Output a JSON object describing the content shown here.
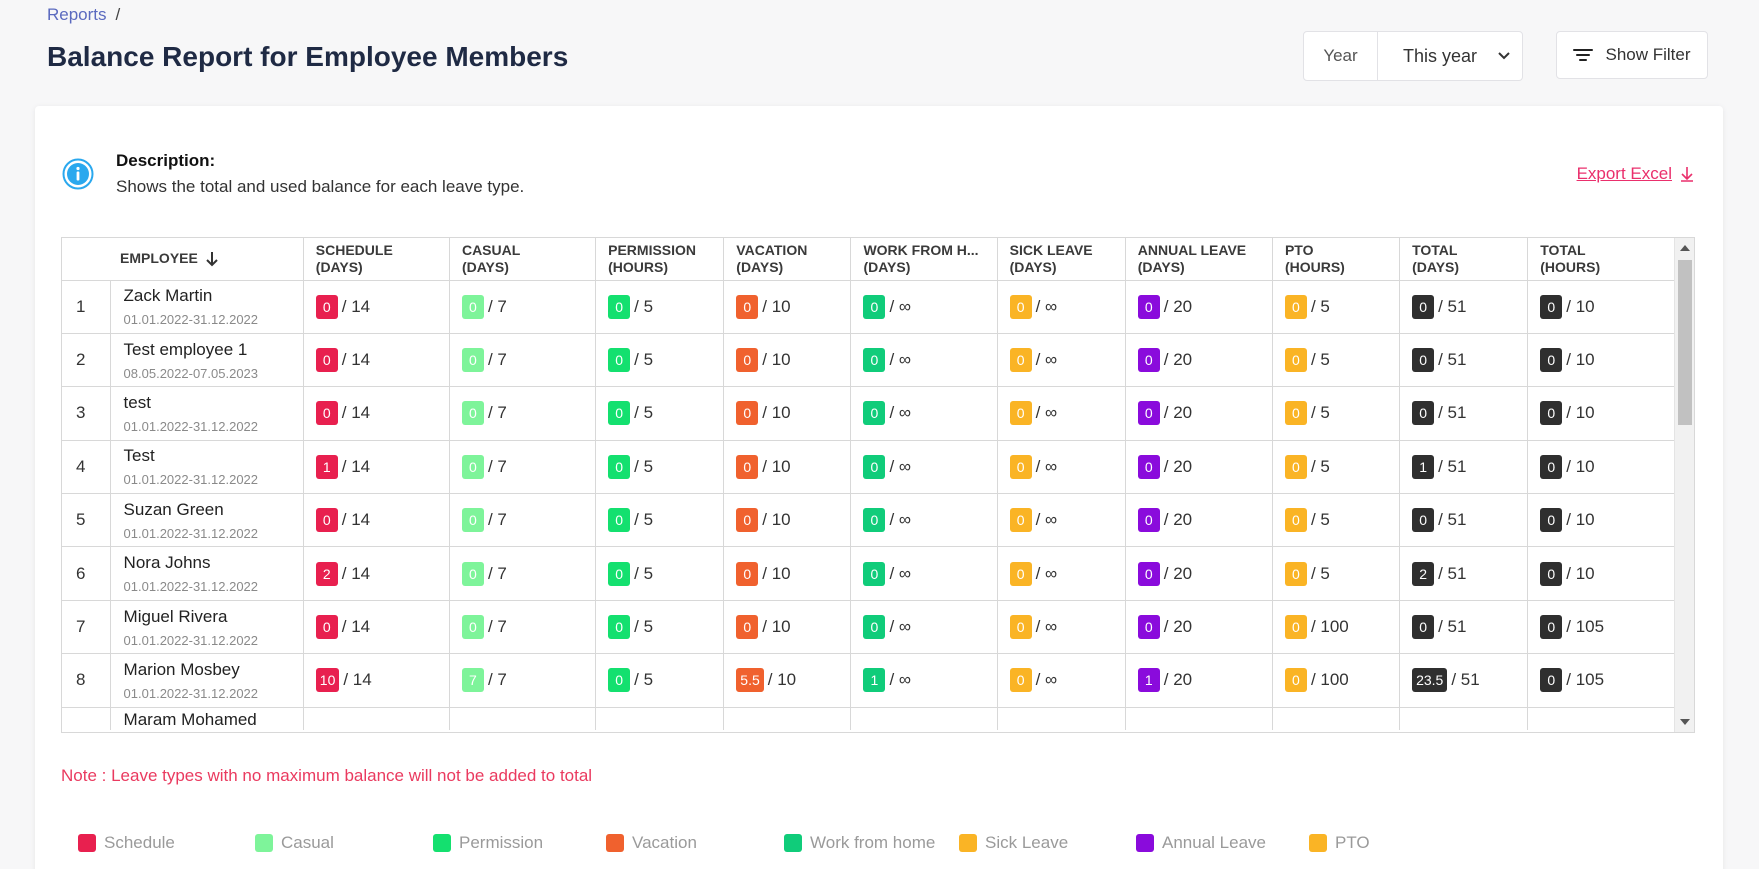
{
  "breadcrumb": {
    "link": "Reports",
    "separator": "/"
  },
  "page_title": "Balance Report for Employee Members",
  "year_filter": {
    "label": "Year",
    "selected": "This year"
  },
  "show_filter_label": "Show Filter",
  "description": {
    "title": "Description:",
    "text": "Shows the total and used balance for each leave type."
  },
  "export_label": "Export Excel",
  "colors": {
    "schedule": "#e8204f",
    "casual": "#7ef49a",
    "permission": "#14e06f",
    "vacation": "#f0612e",
    "wfh": "#10cc7a",
    "sick": "#fab425",
    "annual": "#8a0bdc",
    "pto": "#fab425",
    "total": "#2f2f2f"
  },
  "table": {
    "headers": [
      {
        "key": "employee",
        "label": "EMPLOYEE"
      },
      {
        "key": "schedule",
        "line1": "SCHEDULE",
        "line2": "(DAYS)"
      },
      {
        "key": "casual",
        "line1": "CASUAL",
        "line2": "(DAYS)"
      },
      {
        "key": "permission",
        "line1": "PERMISSION",
        "line2": "(HOURS)"
      },
      {
        "key": "vacation",
        "line1": "VACATION",
        "line2": "(DAYS)"
      },
      {
        "key": "wfh",
        "line1": "WORK FROM H...",
        "line2": "(DAYS)"
      },
      {
        "key": "sick",
        "line1": "SICK LEAVE",
        "line2": "(DAYS)"
      },
      {
        "key": "annual",
        "line1": "ANNUAL LEAVE",
        "line2": "(DAYS)"
      },
      {
        "key": "pto",
        "line1": "PTO",
        "line2": "(HOURS)"
      },
      {
        "key": "total_days",
        "line1": "TOTAL",
        "line2": "(DAYS)"
      },
      {
        "key": "total_hours",
        "line1": "TOTAL",
        "line2": "(HOURS)"
      }
    ],
    "rows": [
      {
        "idx": "1",
        "name": "Zack Martin",
        "dates": "01.01.2022-31.12.2022",
        "cells": [
          [
            "0",
            "/ 14"
          ],
          [
            "0",
            "/ 7"
          ],
          [
            "0",
            "/ 5"
          ],
          [
            "0",
            "/ 10"
          ],
          [
            "0",
            "/ ∞"
          ],
          [
            "0",
            "/ ∞"
          ],
          [
            "0",
            "/ 20"
          ],
          [
            "0",
            "/ 5"
          ],
          [
            "0",
            "/ 51"
          ],
          [
            "0",
            "/ 10"
          ]
        ]
      },
      {
        "idx": "2",
        "name": "Test employee 1",
        "dates": "08.05.2022-07.05.2023",
        "cells": [
          [
            "0",
            "/ 14"
          ],
          [
            "0",
            "/ 7"
          ],
          [
            "0",
            "/ 5"
          ],
          [
            "0",
            "/ 10"
          ],
          [
            "0",
            "/ ∞"
          ],
          [
            "0",
            "/ ∞"
          ],
          [
            "0",
            "/ 20"
          ],
          [
            "0",
            "/ 5"
          ],
          [
            "0",
            "/ 51"
          ],
          [
            "0",
            "/ 10"
          ]
        ]
      },
      {
        "idx": "3",
        "name": "test",
        "dates": "01.01.2022-31.12.2022",
        "cells": [
          [
            "0",
            "/ 14"
          ],
          [
            "0",
            "/ 7"
          ],
          [
            "0",
            "/ 5"
          ],
          [
            "0",
            "/ 10"
          ],
          [
            "0",
            "/ ∞"
          ],
          [
            "0",
            "/ ∞"
          ],
          [
            "0",
            "/ 20"
          ],
          [
            "0",
            "/ 5"
          ],
          [
            "0",
            "/ 51"
          ],
          [
            "0",
            "/ 10"
          ]
        ]
      },
      {
        "idx": "4",
        "name": "Test",
        "dates": "01.01.2022-31.12.2022",
        "cells": [
          [
            "1",
            "/ 14"
          ],
          [
            "0",
            "/ 7"
          ],
          [
            "0",
            "/ 5"
          ],
          [
            "0",
            "/ 10"
          ],
          [
            "0",
            "/ ∞"
          ],
          [
            "0",
            "/ ∞"
          ],
          [
            "0",
            "/ 20"
          ],
          [
            "0",
            "/ 5"
          ],
          [
            "1",
            "/ 51"
          ],
          [
            "0",
            "/ 10"
          ]
        ]
      },
      {
        "idx": "5",
        "name": "Suzan Green",
        "dates": "01.01.2022-31.12.2022",
        "cells": [
          [
            "0",
            "/ 14"
          ],
          [
            "0",
            "/ 7"
          ],
          [
            "0",
            "/ 5"
          ],
          [
            "0",
            "/ 10"
          ],
          [
            "0",
            "/ ∞"
          ],
          [
            "0",
            "/ ∞"
          ],
          [
            "0",
            "/ 20"
          ],
          [
            "0",
            "/ 5"
          ],
          [
            "0",
            "/ 51"
          ],
          [
            "0",
            "/ 10"
          ]
        ]
      },
      {
        "idx": "6",
        "name": "Nora Johns",
        "dates": "01.01.2022-31.12.2022",
        "cells": [
          [
            "2",
            "/ 14"
          ],
          [
            "0",
            "/ 7"
          ],
          [
            "0",
            "/ 5"
          ],
          [
            "0",
            "/ 10"
          ],
          [
            "0",
            "/ ∞"
          ],
          [
            "0",
            "/ ∞"
          ],
          [
            "0",
            "/ 20"
          ],
          [
            "0",
            "/ 5"
          ],
          [
            "2",
            "/ 51"
          ],
          [
            "0",
            "/ 10"
          ]
        ]
      },
      {
        "idx": "7",
        "name": "Miguel Rivera",
        "dates": "01.01.2022-31.12.2022",
        "cells": [
          [
            "0",
            "/ 14"
          ],
          [
            "0",
            "/ 7"
          ],
          [
            "0",
            "/ 5"
          ],
          [
            "0",
            "/ 10"
          ],
          [
            "0",
            "/ ∞"
          ],
          [
            "0",
            "/ ∞"
          ],
          [
            "0",
            "/ 20"
          ],
          [
            "0",
            "/ 100"
          ],
          [
            "0",
            "/ 51"
          ],
          [
            "0",
            "/ 105"
          ]
        ]
      },
      {
        "idx": "8",
        "name": "Marion Mosbey",
        "dates": "01.01.2022-31.12.2022",
        "cells": [
          [
            "10",
            "/ 14"
          ],
          [
            "7",
            "/ 7"
          ],
          [
            "0",
            "/ 5"
          ],
          [
            "5.5",
            "/ 10"
          ],
          [
            "1",
            "/ ∞"
          ],
          [
            "0",
            "/ ∞"
          ],
          [
            "1",
            "/ 20"
          ],
          [
            "0",
            "/ 100"
          ],
          [
            "23.5",
            "/ 51"
          ],
          [
            "0",
            "/ 105"
          ]
        ]
      },
      {
        "idx": "",
        "name": "Maram Mohamed",
        "dates": "",
        "cells": []
      }
    ]
  },
  "note": "Note : Leave types with no maximum balance will not be added to total",
  "legend": [
    {
      "label": "Schedule",
      "color": "#e8204f"
    },
    {
      "label": "Casual",
      "color": "#7ef49a"
    },
    {
      "label": "Permission",
      "color": "#14e06f"
    },
    {
      "label": "Vacation",
      "color": "#f0612e"
    },
    {
      "label": "Work from home",
      "color": "#10cc7a"
    },
    {
      "label": "Sick Leave",
      "color": "#fab425"
    },
    {
      "label": "Annual Leave",
      "color": "#8a0bdc"
    },
    {
      "label": "PTO",
      "color": "#fab425"
    }
  ]
}
